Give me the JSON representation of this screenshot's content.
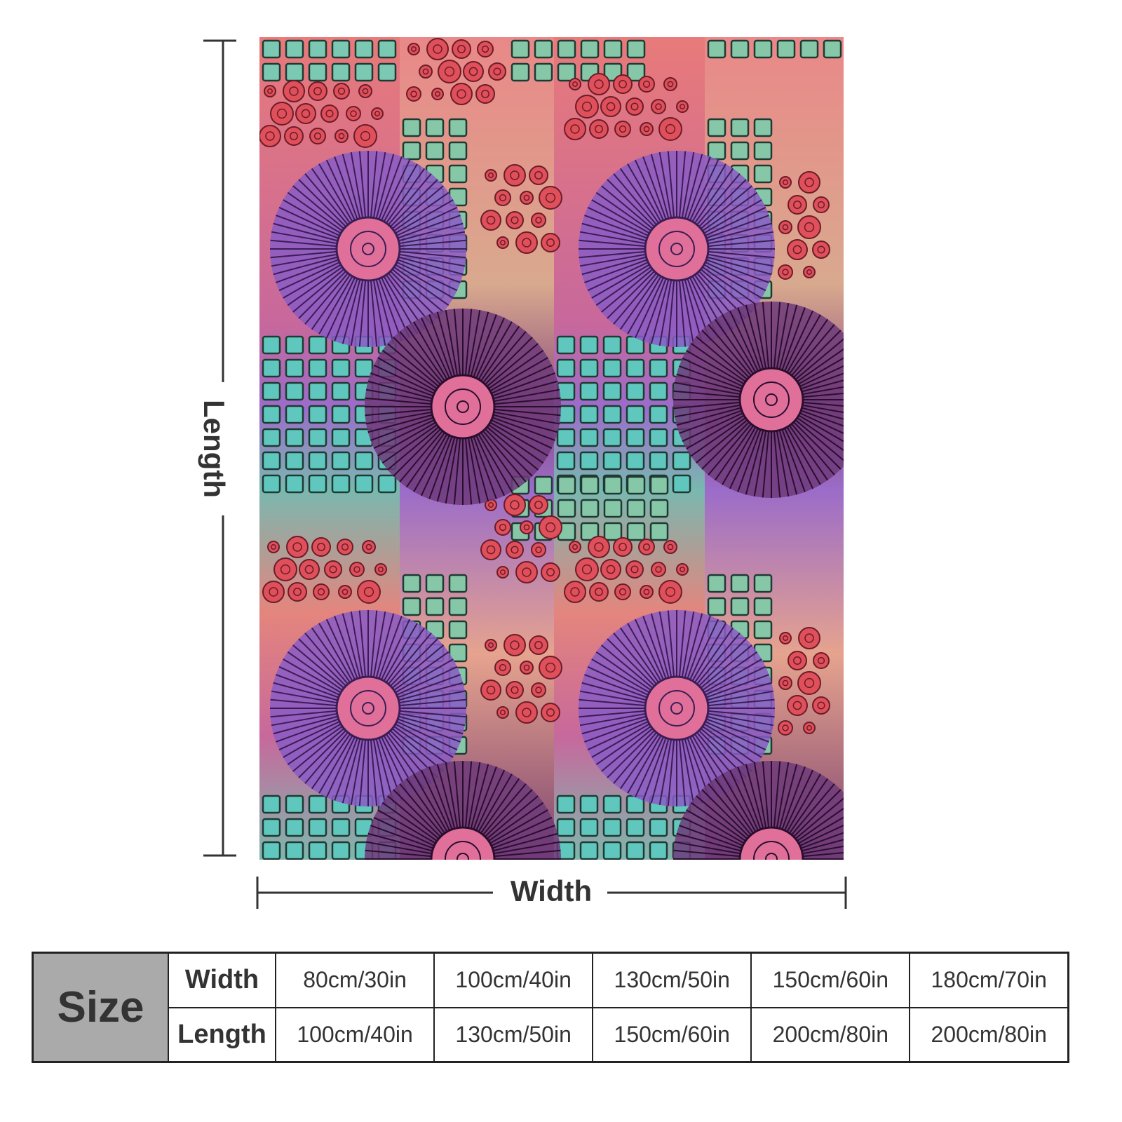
{
  "dimension_labels": {
    "length": "Length",
    "width": "Width"
  },
  "size_table": {
    "title": "Size",
    "rows": [
      {
        "label": "Width",
        "cells": [
          "80cm/30in",
          "100cm/40in",
          "130cm/50in",
          "150cm/60in",
          "180cm/70in"
        ]
      },
      {
        "label": "Length",
        "cells": [
          "100cm/40in",
          "130cm/50in",
          "150cm/60in",
          "200cm/80in",
          "200cm/80in"
        ]
      }
    ]
  }
}
